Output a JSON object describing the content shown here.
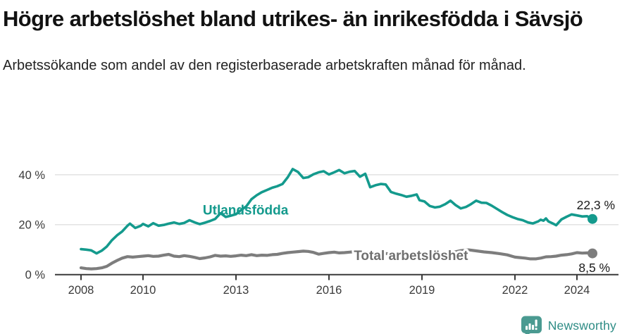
{
  "header": {
    "title": "Högre arbetslöshet bland utrikes- än inrikesfödda i Sävsjö",
    "subtitle": "Arbetssökande som andel av den registerbaserade arbetskraften månad för månad."
  },
  "footer": {
    "brand": "Newsworthy",
    "logo_icon": "newsworthy-speech-bubble-bar-chart-icon",
    "brand_color": "#2e8c85",
    "logo_fill": "#4a9a91"
  },
  "chart_data": {
    "type": "line",
    "title": "",
    "xlabel": "",
    "ylabel": "",
    "x_axis": {
      "ticks": [
        2008,
        2010,
        2013,
        2016,
        2019,
        2022,
        2024
      ],
      "range": [
        2008,
        2025.3
      ],
      "color": "#3a3a3a"
    },
    "y_axis": {
      "ticks": [
        0,
        20,
        40
      ],
      "tick_suffix": " %",
      "range": [
        0,
        45
      ],
      "grid": true,
      "grid_color": "#dcdcdc",
      "label_color": "#3a3a3a"
    },
    "series": [
      {
        "name": "Utlandsfödda",
        "color": "#149a8d",
        "stroke_width": 3.6,
        "end_value_label": "22,3 %",
        "points": [
          [
            2008.0,
            10.2
          ],
          [
            2008.17,
            10.0
          ],
          [
            2008.33,
            9.7
          ],
          [
            2008.5,
            8.5
          ],
          [
            2008.67,
            9.6
          ],
          [
            2008.83,
            11.2
          ],
          [
            2009.0,
            13.8
          ],
          [
            2009.17,
            15.8
          ],
          [
            2009.33,
            17.3
          ],
          [
            2009.5,
            19.6
          ],
          [
            2009.58,
            20.4
          ],
          [
            2009.75,
            18.7
          ],
          [
            2009.92,
            19.5
          ],
          [
            2010.0,
            20.3
          ],
          [
            2010.17,
            19.3
          ],
          [
            2010.33,
            20.6
          ],
          [
            2010.5,
            19.6
          ],
          [
            2010.67,
            19.9
          ],
          [
            2010.83,
            20.4
          ],
          [
            2011.0,
            20.9
          ],
          [
            2011.17,
            20.3
          ],
          [
            2011.33,
            20.7
          ],
          [
            2011.5,
            21.8
          ],
          [
            2011.67,
            20.9
          ],
          [
            2011.83,
            20.2
          ],
          [
            2012.0,
            20.8
          ],
          [
            2012.17,
            21.5
          ],
          [
            2012.33,
            22.3
          ],
          [
            2012.5,
            24.6
          ],
          [
            2012.58,
            23.9
          ],
          [
            2012.67,
            23.1
          ],
          [
            2012.83,
            23.6
          ],
          [
            2013.0,
            24.2
          ],
          [
            2013.17,
            25.9
          ],
          [
            2013.33,
            27.3
          ],
          [
            2013.5,
            30.2
          ],
          [
            2013.67,
            31.8
          ],
          [
            2013.83,
            33.0
          ],
          [
            2014.0,
            33.9
          ],
          [
            2014.17,
            34.8
          ],
          [
            2014.33,
            35.4
          ],
          [
            2014.5,
            36.3
          ],
          [
            2014.67,
            39.0
          ],
          [
            2014.83,
            42.3
          ],
          [
            2015.0,
            41.1
          ],
          [
            2015.17,
            38.7
          ],
          [
            2015.33,
            39.0
          ],
          [
            2015.5,
            40.2
          ],
          [
            2015.67,
            41.0
          ],
          [
            2015.83,
            41.4
          ],
          [
            2016.0,
            40.1
          ],
          [
            2016.17,
            41.0
          ],
          [
            2016.33,
            41.9
          ],
          [
            2016.5,
            40.6
          ],
          [
            2016.67,
            41.2
          ],
          [
            2016.83,
            41.5
          ],
          [
            2017.0,
            39.2
          ],
          [
            2017.17,
            40.4
          ],
          [
            2017.33,
            35.0
          ],
          [
            2017.5,
            35.8
          ],
          [
            2017.67,
            36.3
          ],
          [
            2017.83,
            36.1
          ],
          [
            2018.0,
            33.1
          ],
          [
            2018.17,
            32.4
          ],
          [
            2018.33,
            31.9
          ],
          [
            2018.5,
            31.2
          ],
          [
            2018.67,
            31.6
          ],
          [
            2018.83,
            32.1
          ],
          [
            2018.92,
            29.8
          ],
          [
            2019.08,
            29.3
          ],
          [
            2019.25,
            27.5
          ],
          [
            2019.42,
            26.9
          ],
          [
            2019.58,
            27.2
          ],
          [
            2019.75,
            28.2
          ],
          [
            2019.92,
            29.6
          ],
          [
            2020.08,
            27.9
          ],
          [
            2020.25,
            26.5
          ],
          [
            2020.42,
            27.1
          ],
          [
            2020.58,
            28.2
          ],
          [
            2020.75,
            29.6
          ],
          [
            2020.92,
            28.8
          ],
          [
            2021.08,
            28.7
          ],
          [
            2021.25,
            27.6
          ],
          [
            2021.42,
            26.3
          ],
          [
            2021.58,
            25.1
          ],
          [
            2021.75,
            23.9
          ],
          [
            2021.92,
            23.0
          ],
          [
            2022.08,
            22.3
          ],
          [
            2022.25,
            21.8
          ],
          [
            2022.42,
            20.9
          ],
          [
            2022.58,
            20.5
          ],
          [
            2022.75,
            21.3
          ],
          [
            2022.83,
            22.0
          ],
          [
            2022.92,
            21.6
          ],
          [
            2023.0,
            22.5
          ],
          [
            2023.08,
            21.3
          ],
          [
            2023.25,
            20.3
          ],
          [
            2023.33,
            19.8
          ],
          [
            2023.5,
            22.1
          ],
          [
            2023.67,
            23.2
          ],
          [
            2023.83,
            24.1
          ],
          [
            2024.0,
            23.7
          ],
          [
            2024.17,
            23.3
          ],
          [
            2024.33,
            23.4
          ],
          [
            2024.5,
            22.3
          ]
        ]
      },
      {
        "name": "Total arbetslöshet",
        "color": "#7d7d7d",
        "stroke_width": 4.2,
        "end_value_label": "8,5 %",
        "points": [
          [
            2008.0,
            2.7
          ],
          [
            2008.17,
            2.4
          ],
          [
            2008.33,
            2.3
          ],
          [
            2008.5,
            2.4
          ],
          [
            2008.67,
            2.7
          ],
          [
            2008.83,
            3.3
          ],
          [
            2009.0,
            4.6
          ],
          [
            2009.17,
            5.7
          ],
          [
            2009.33,
            6.6
          ],
          [
            2009.5,
            7.2
          ],
          [
            2009.67,
            7.0
          ],
          [
            2009.83,
            7.2
          ],
          [
            2010.0,
            7.4
          ],
          [
            2010.17,
            7.6
          ],
          [
            2010.33,
            7.3
          ],
          [
            2010.5,
            7.4
          ],
          [
            2010.67,
            7.8
          ],
          [
            2010.83,
            8.1
          ],
          [
            2011.0,
            7.4
          ],
          [
            2011.17,
            7.2
          ],
          [
            2011.33,
            7.6
          ],
          [
            2011.5,
            7.3
          ],
          [
            2011.67,
            6.9
          ],
          [
            2011.83,
            6.4
          ],
          [
            2012.0,
            6.7
          ],
          [
            2012.17,
            7.1
          ],
          [
            2012.33,
            7.7
          ],
          [
            2012.5,
            7.4
          ],
          [
            2012.67,
            7.5
          ],
          [
            2012.83,
            7.3
          ],
          [
            2013.0,
            7.5
          ],
          [
            2013.17,
            7.8
          ],
          [
            2013.33,
            7.6
          ],
          [
            2013.5,
            8.0
          ],
          [
            2013.67,
            7.6
          ],
          [
            2013.83,
            7.8
          ],
          [
            2014.0,
            7.7
          ],
          [
            2014.17,
            8.0
          ],
          [
            2014.33,
            8.1
          ],
          [
            2014.5,
            8.5
          ],
          [
            2014.67,
            8.8
          ],
          [
            2014.83,
            9.0
          ],
          [
            2015.0,
            9.2
          ],
          [
            2015.17,
            9.4
          ],
          [
            2015.33,
            9.3
          ],
          [
            2015.5,
            8.9
          ],
          [
            2015.67,
            8.2
          ],
          [
            2015.83,
            8.5
          ],
          [
            2016.0,
            8.8
          ],
          [
            2016.17,
            9.0
          ],
          [
            2016.33,
            8.7
          ],
          [
            2016.5,
            8.8
          ],
          [
            2016.67,
            9.0
          ],
          [
            2016.83,
            9.2
          ],
          [
            2017.0,
            9.1
          ],
          [
            2017.25,
            8.9
          ],
          [
            2017.5,
            8.7
          ],
          [
            2017.75,
            8.5
          ],
          [
            2018.0,
            8.3
          ],
          [
            2018.25,
            8.1
          ],
          [
            2018.5,
            8.0
          ],
          [
            2018.75,
            8.2
          ],
          [
            2019.0,
            8.3
          ],
          [
            2019.25,
            8.5
          ],
          [
            2019.5,
            8.6
          ],
          [
            2019.75,
            8.7
          ],
          [
            2020.0,
            8.9
          ],
          [
            2020.25,
            9.6
          ],
          [
            2020.5,
            9.9
          ],
          [
            2020.75,
            9.5
          ],
          [
            2021.0,
            9.1
          ],
          [
            2021.25,
            8.8
          ],
          [
            2021.5,
            8.4
          ],
          [
            2021.75,
            7.9
          ],
          [
            2022.0,
            7.0
          ],
          [
            2022.17,
            6.8
          ],
          [
            2022.33,
            6.6
          ],
          [
            2022.5,
            6.3
          ],
          [
            2022.67,
            6.3
          ],
          [
            2022.83,
            6.6
          ],
          [
            2023.0,
            7.1
          ],
          [
            2023.17,
            7.2
          ],
          [
            2023.33,
            7.4
          ],
          [
            2023.5,
            7.8
          ],
          [
            2023.67,
            8.0
          ],
          [
            2023.83,
            8.3
          ],
          [
            2024.0,
            8.8
          ],
          [
            2024.17,
            8.6
          ],
          [
            2024.33,
            8.7
          ],
          [
            2024.5,
            8.5
          ]
        ]
      }
    ],
    "series_labels": [
      {
        "text": "Utlandsfödda",
        "at_year": 2011.93,
        "at_value": 24.0,
        "color": "#149a8d",
        "anchor": "start",
        "halo": false
      },
      {
        "text": "Total arbetslöshet",
        "at_year": 2016.8,
        "at_value": 5.85,
        "color": "#6f6f6f",
        "anchor": "start",
        "halo": true
      }
    ],
    "annotations": [
      {
        "text": "22,3 %",
        "at_year": 2025.23,
        "at_value": 26.2,
        "anchor": "end",
        "color": "#1a1a1a"
      },
      {
        "text": "8,5 %",
        "at_year": 2025.07,
        "at_value": 1.05,
        "anchor": "end",
        "color": "#1a1a1a"
      }
    ],
    "legend_position": "inline-labels",
    "grid": "horizontal-only"
  }
}
